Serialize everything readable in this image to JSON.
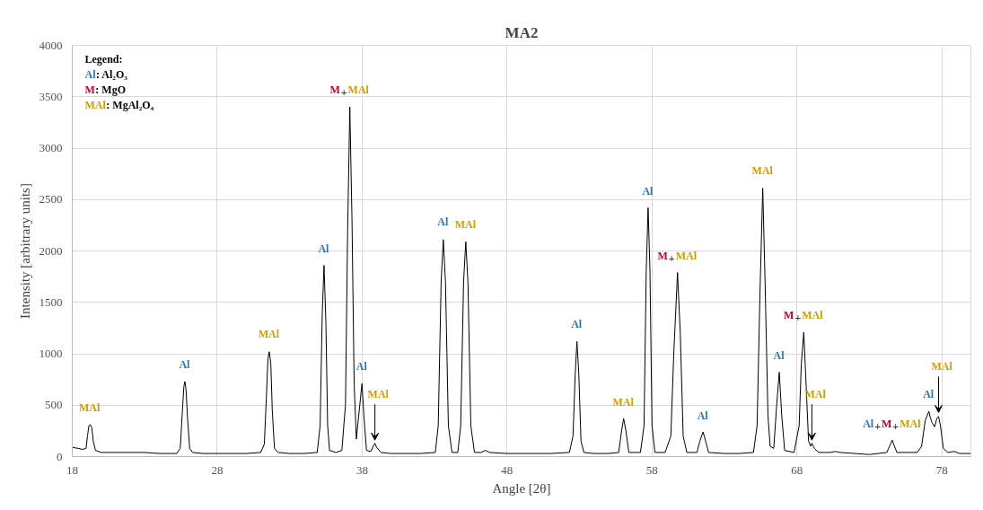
{
  "chart_data": {
    "type": "line",
    "title": "MA2",
    "xlabel": "Angle [2θ]",
    "ylabel": "Intensity [arbitrary units]",
    "xlim": [
      18,
      80
    ],
    "xticks": [
      18,
      28,
      38,
      48,
      58,
      68,
      78
    ],
    "ylim": [
      0,
      4000
    ],
    "yticks": [
      0,
      500,
      1000,
      1500,
      2000,
      2500,
      3000,
      3500,
      4000
    ],
    "grid": true,
    "marker": "none",
    "line_style": "solid",
    "series": [
      {
        "color": "#000000",
        "x": [
          18.0,
          18.4,
          18.7,
          18.95,
          19.05,
          19.15,
          19.25,
          19.35,
          19.45,
          19.6,
          20.0,
          21,
          22,
          23,
          24,
          25.2,
          25.45,
          25.6,
          25.7,
          25.77,
          25.85,
          25.95,
          26.1,
          26.3,
          27,
          28,
          29,
          30,
          31.0,
          31.25,
          31.4,
          31.5,
          31.59,
          31.7,
          31.8,
          31.95,
          32.2,
          33,
          34,
          34.9,
          35.1,
          35.25,
          35.37,
          35.5,
          35.62,
          35.75,
          36.2,
          36.6,
          36.85,
          37.0,
          37.15,
          37.3,
          37.45,
          37.6,
          37.8,
          37.99,
          38.12,
          38.3,
          38.6,
          38.8,
          38.88,
          39.0,
          39.3,
          40,
          41,
          42,
          43.05,
          43.25,
          43.45,
          43.6,
          43.75,
          43.95,
          44.2,
          44.6,
          44.8,
          45.0,
          45.15,
          45.3,
          45.5,
          45.75,
          46.2,
          46.5,
          46.8,
          48,
          50,
          51,
          52.3,
          52.55,
          52.7,
          52.82,
          52.95,
          53.1,
          53.3,
          54,
          55,
          55.7,
          55.9,
          56.04,
          56.2,
          56.4,
          57.2,
          57.45,
          57.6,
          57.73,
          57.86,
          58.0,
          58.2,
          58.9,
          59.3,
          59.5,
          59.76,
          59.95,
          60.15,
          60.4,
          61.1,
          61.3,
          61.52,
          61.7,
          61.9,
          63,
          64,
          65.0,
          65.25,
          65.45,
          65.64,
          65.8,
          66.0,
          66.15,
          66.4,
          66.6,
          66.78,
          66.95,
          67.15,
          67.8,
          68.15,
          68.3,
          68.47,
          68.6,
          68.8,
          68.95,
          69.03,
          69.2,
          69.5,
          70.3,
          70.64,
          71,
          72,
          73,
          74.2,
          74.45,
          74.57,
          74.7,
          74.9,
          76.3,
          76.6,
          76.85,
          77.1,
          77.2,
          77.32,
          77.5,
          77.65,
          77.77,
          77.9,
          78.1,
          78.4,
          78.86,
          79.2,
          80
        ],
        "values": [
          90,
          80,
          70,
          80,
          200,
          300,
          310,
          280,
          150,
          60,
          40,
          40,
          40,
          40,
          30,
          30,
          80,
          450,
          680,
          730,
          650,
          380,
          80,
          40,
          30,
          30,
          30,
          30,
          40,
          120,
          600,
          950,
          1020,
          900,
          450,
          80,
          40,
          30,
          30,
          40,
          300,
          1400,
          1860,
          1300,
          300,
          60,
          40,
          60,
          500,
          2200,
          3400,
          2300,
          700,
          170,
          450,
          710,
          400,
          60,
          50,
          110,
          130,
          90,
          40,
          30,
          30,
          30,
          40,
          300,
          1700,
          2110,
          1700,
          300,
          40,
          40,
          300,
          1700,
          2090,
          1700,
          300,
          40,
          40,
          60,
          40,
          30,
          30,
          30,
          40,
          200,
          800,
          1120,
          800,
          150,
          40,
          30,
          30,
          40,
          250,
          370,
          250,
          40,
          40,
          300,
          1800,
          2420,
          1800,
          300,
          40,
          40,
          200,
          1000,
          1790,
          1200,
          200,
          40,
          40,
          150,
          240,
          150,
          40,
          30,
          30,
          40,
          300,
          1600,
          2610,
          1700,
          400,
          100,
          80,
          500,
          820,
          400,
          60,
          40,
          300,
          900,
          1210,
          800,
          150,
          100,
          130,
          80,
          40,
          40,
          50,
          40,
          30,
          20,
          40,
          120,
          160,
          110,
          40,
          40,
          100,
          350,
          440,
          380,
          330,
          290,
          370,
          390,
          300,
          80,
          40,
          50,
          30,
          30
        ]
      }
    ],
    "annotations": [
      "Legend:",
      "Al: Al₂O₃",
      "M: MgO",
      "MAl: MgAl₂O₄",
      {
        "text": "MAl",
        "x": 19.22,
        "y": 307
      },
      {
        "text": "Al",
        "x": 25.77,
        "y": 727
      },
      {
        "text": "MAl",
        "x": 31.59,
        "y": 1023
      },
      {
        "text": "Al",
        "x": 35.37,
        "y": 1858
      },
      {
        "text": "M+MAl",
        "x": 37.15,
        "y": 3400
      },
      {
        "text": "Al",
        "x": 37.99,
        "y": 713
      },
      {
        "text": "MAl",
        "x": 38.88,
        "y": 125
      },
      {
        "text": "Al",
        "x": 43.6,
        "y": 2114
      },
      {
        "text": "MAl",
        "x": 45.15,
        "y": 2090
      },
      {
        "text": "Al",
        "x": 52.82,
        "y": 1120
      },
      {
        "text": "MAl",
        "x": 56.04,
        "y": 365
      },
      {
        "text": "Al",
        "x": 57.73,
        "y": 2415
      },
      {
        "text": "M+MAl",
        "x": 59.76,
        "y": 1786
      },
      {
        "text": "Al",
        "x": 61.52,
        "y": 235
      },
      {
        "text": "MAl",
        "x": 65.64,
        "y": 2613
      },
      {
        "text": "Al",
        "x": 66.78,
        "y": 815
      },
      {
        "text": "M+MAl",
        "x": 68.47,
        "y": 1207
      },
      {
        "text": "MAl",
        "x": 69.03,
        "y": 125
      },
      {
        "text": "Al+M+MAl",
        "x": 74.57,
        "y": 157
      },
      {
        "text": "Al",
        "x": 77.1,
        "y": 444
      },
      {
        "text": "MAl",
        "x": 77.77,
        "y": 394
      }
    ]
  }
}
